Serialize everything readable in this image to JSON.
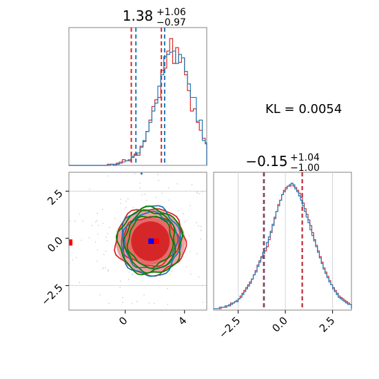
{
  "kl_text": "KL = 0.0054",
  "colors": {
    "red": "#d62728",
    "blue": "#1f77b4",
    "green": "#008000",
    "fill_light": "#f2a0a0",
    "fill_mid": "#e66b6b",
    "fill_dark": "#d62728",
    "marker_red": "#ff0000",
    "marker_blue": "#0000ff",
    "grid": "#d3d3d3",
    "frame": "#808080"
  },
  "chart_data": [
    {
      "type": "histogram",
      "panel": "top-left",
      "title_main": "1.38",
      "title_sup": "+1.06",
      "title_sub": "−0.97",
      "xlim": [
        -3.8,
        5.5
      ],
      "x_edges_start": -3.8,
      "bin_width": 0.2,
      "series": [
        {
          "name": "",
          "color": "red",
          "counts": [
            0,
            0,
            0,
            0,
            0,
            0,
            0,
            0,
            0,
            0,
            0,
            0,
            0,
            1,
            1,
            0,
            2,
            2,
            5,
            4,
            4,
            7,
            10,
            9,
            17,
            21,
            30,
            40,
            52,
            58,
            60,
            84,
            86,
            101,
            112,
            90,
            104,
            91,
            95,
            80,
            66,
            48,
            50,
            38,
            31,
            24,
            19,
            17,
            10,
            6,
            5,
            4,
            2,
            2,
            1,
            1,
            0,
            0,
            1,
            0,
            0,
            0,
            0,
            0,
            0,
            0,
            0,
            0,
            0,
            0,
            0,
            0,
            0
          ]
        },
        {
          "name": "",
          "color": "blue",
          "counts": [
            0,
            0,
            0,
            0,
            0,
            0,
            0,
            0,
            0,
            0,
            0,
            0,
            0,
            0,
            1,
            1,
            1,
            3,
            3,
            4,
            5,
            8,
            9,
            11,
            16,
            22,
            30,
            38,
            48,
            55,
            70,
            80,
            96,
            98,
            100,
            101,
            90,
            98,
            95,
            83,
            72,
            60,
            60,
            39,
            40,
            22,
            20,
            13,
            10,
            10,
            8,
            5,
            5,
            3,
            2,
            1,
            1,
            0,
            0,
            0,
            0,
            0,
            0,
            0,
            0,
            0,
            0,
            0,
            0,
            0,
            0,
            0,
            0
          ]
        }
      ],
      "quantiles_red": [
        0.41,
        1.38,
        2.44
      ],
      "quantiles_blue": [
        0.72,
        1.58,
        2.66
      ],
      "tick_labels": []
    },
    {
      "type": "histogram",
      "panel": "bottom-right",
      "title_main": "−0.15",
      "title_sup": "+1.04",
      "title_sub": "−1.00",
      "xlim": [
        -3.8,
        3.5
      ],
      "x_edges_start": -3.8,
      "bin_width": 0.1,
      "tick_values": [
        -2.5,
        0.0,
        2.5
      ],
      "tick_labels": [
        "−2.5",
        "0.0",
        "2.5"
      ],
      "series": [
        {
          "name": "",
          "color": "red",
          "counts": [
            1,
            1,
            1,
            1,
            2,
            2,
            2,
            3,
            3,
            5,
            5,
            6,
            6,
            8,
            10,
            12,
            14,
            16,
            18,
            20,
            22,
            25,
            28,
            32,
            35,
            38,
            40,
            42,
            45,
            50,
            55,
            60,
            65,
            70,
            75,
            78,
            82,
            85,
            86,
            88,
            88,
            90,
            88,
            87,
            85,
            83,
            80,
            76,
            72,
            68,
            64,
            60,
            55,
            50,
            46,
            42,
            38,
            34,
            30,
            27,
            24,
            21,
            18,
            16,
            14,
            12,
            10,
            9,
            8,
            7,
            6,
            5,
            4,
            3,
            3,
            2,
            2,
            1,
            1
          ]
        },
        {
          "name": "",
          "color": "blue",
          "counts": [
            1,
            1,
            1,
            2,
            2,
            2,
            3,
            3,
            4,
            4,
            5,
            6,
            7,
            8,
            9,
            11,
            13,
            15,
            17,
            19,
            22,
            25,
            27,
            31,
            34,
            37,
            41,
            44,
            48,
            52,
            56,
            61,
            66,
            70,
            74,
            78,
            82,
            84,
            87,
            88,
            89,
            90,
            89,
            86,
            84,
            81,
            78,
            74,
            70,
            66,
            62,
            57,
            53,
            49,
            45,
            41,
            37,
            33,
            29,
            26,
            23,
            20,
            18,
            15,
            13,
            11,
            9,
            8,
            7,
            6,
            5,
            4,
            4,
            3,
            2,
            2,
            1,
            1,
            1
          ]
        }
      ],
      "quantiles_red": [
        -1.15,
        -0.15,
        0.89
      ],
      "quantiles_blue": [
        -1.12,
        -0.13,
        0.9
      ]
    },
    {
      "type": "contour",
      "panel": "bottom-left",
      "xlim": [
        -3.8,
        5.5
      ],
      "ylim": [
        -3.8,
        3.5
      ],
      "x_tick_values": [
        0,
        4
      ],
      "x_tick_labels": [
        "0",
        "4"
      ],
      "y_tick_values": [
        2.5,
        0.0,
        -2.5
      ],
      "y_tick_labels": [
        "2.5",
        "0.0",
        "−2.5"
      ],
      "marker_red_point": [
        2.1,
        -0.15
      ],
      "marker_blue_point": [
        1.75,
        -0.15
      ],
      "marker_red_edge": [
        -3.75,
        -0.2
      ],
      "grid_y": [
        2.5,
        -2.5
      ],
      "contours": {
        "center": [
          1.7,
          -0.15
        ],
        "fill_levels": [
          {
            "color": "fill_light",
            "rx": 2.35,
            "ry": 1.7
          },
          {
            "color": "fill_mid",
            "rx": 1.85,
            "ry": 1.25
          },
          {
            "color": "fill_dark",
            "rx": 1.3,
            "ry": 1.05
          }
        ],
        "lines": [
          {
            "color": "red",
            "rx": 2.35,
            "ry": 1.75
          },
          {
            "color": "red",
            "rx": 1.9,
            "ry": 1.3
          },
          {
            "color": "blue",
            "rx": 2.0,
            "ry": 1.85
          },
          {
            "color": "blue",
            "rx": 1.8,
            "ry": 1.5
          },
          {
            "color": "green",
            "rx": 2.15,
            "ry": 1.75
          },
          {
            "color": "green",
            "rx": 1.7,
            "ry": 1.6
          },
          {
            "color": "green",
            "rx": 1.5,
            "ry": 1.35
          }
        ]
      }
    }
  ]
}
